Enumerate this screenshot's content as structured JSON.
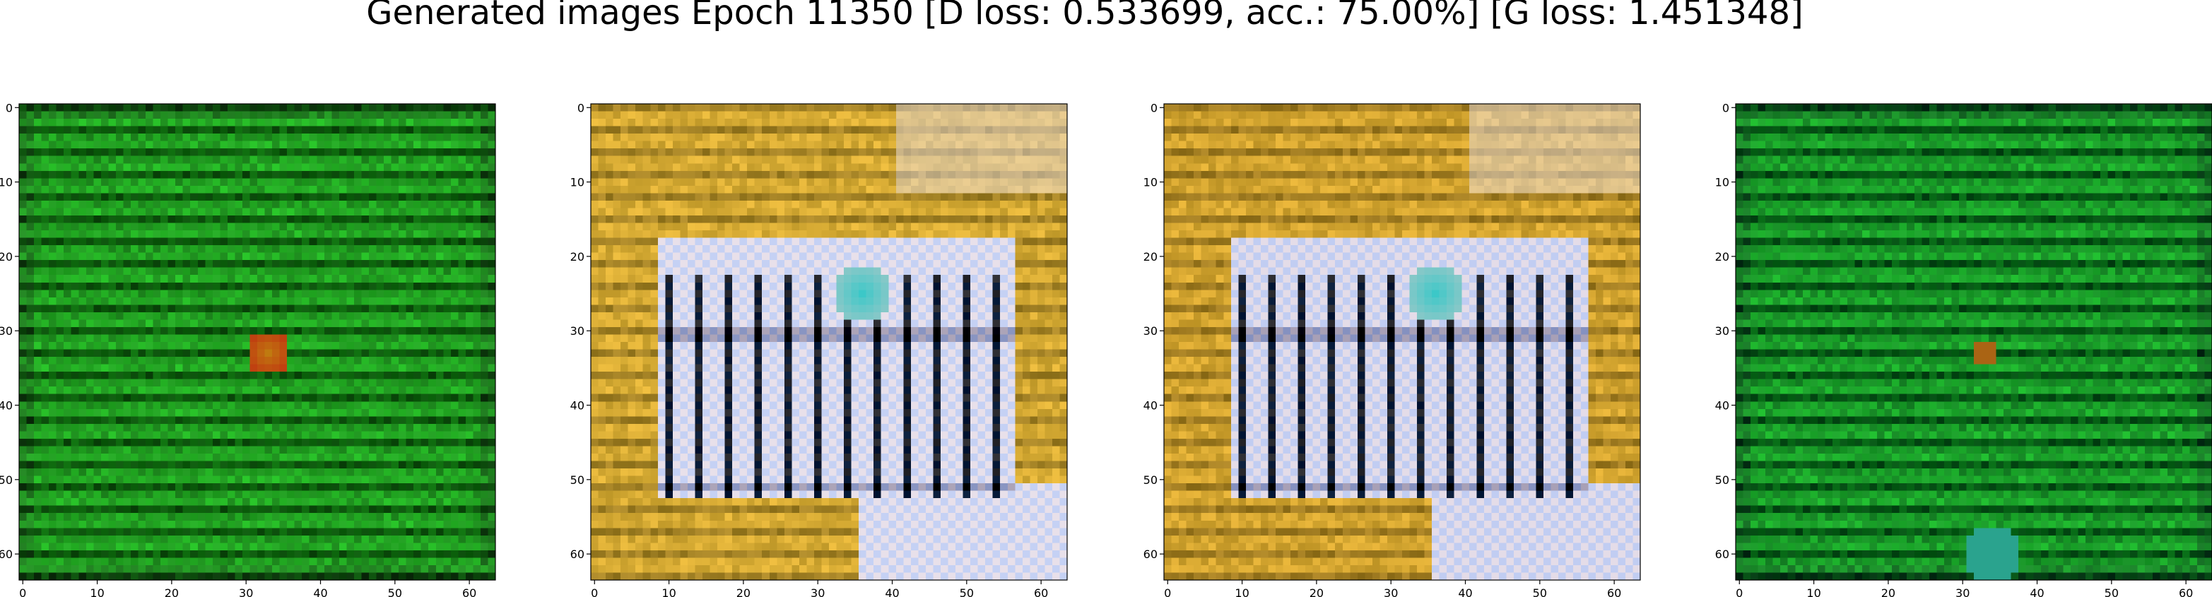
{
  "figure": {
    "suptitle": "Generated images Epoch 11350 [D loss: 0.533699, acc.: 75.00%] [G loss: 1.451348]"
  },
  "image_size": 64,
  "tick_values": [
    0,
    10,
    20,
    30,
    40,
    50,
    60
  ],
  "panels": [
    {
      "name": "generated-image-1",
      "palette": "green",
      "base_color": "#1d8f1d",
      "accent_color": "#c07a10",
      "pattern": "horizontal-stripes"
    },
    {
      "name": "generated-image-2",
      "palette": "gold-white",
      "base_color": "#c9a030",
      "accent_color": "#e8e0ea",
      "pattern": "fence-bars"
    },
    {
      "name": "generated-image-3",
      "palette": "gold-white",
      "base_color": "#c69a2c",
      "accent_color": "#e4dce8",
      "pattern": "fence-bars"
    },
    {
      "name": "generated-image-4",
      "palette": "green",
      "base_color": "#158a24",
      "accent_color": "#2aa37a",
      "pattern": "horizontal-stripes"
    }
  ]
}
